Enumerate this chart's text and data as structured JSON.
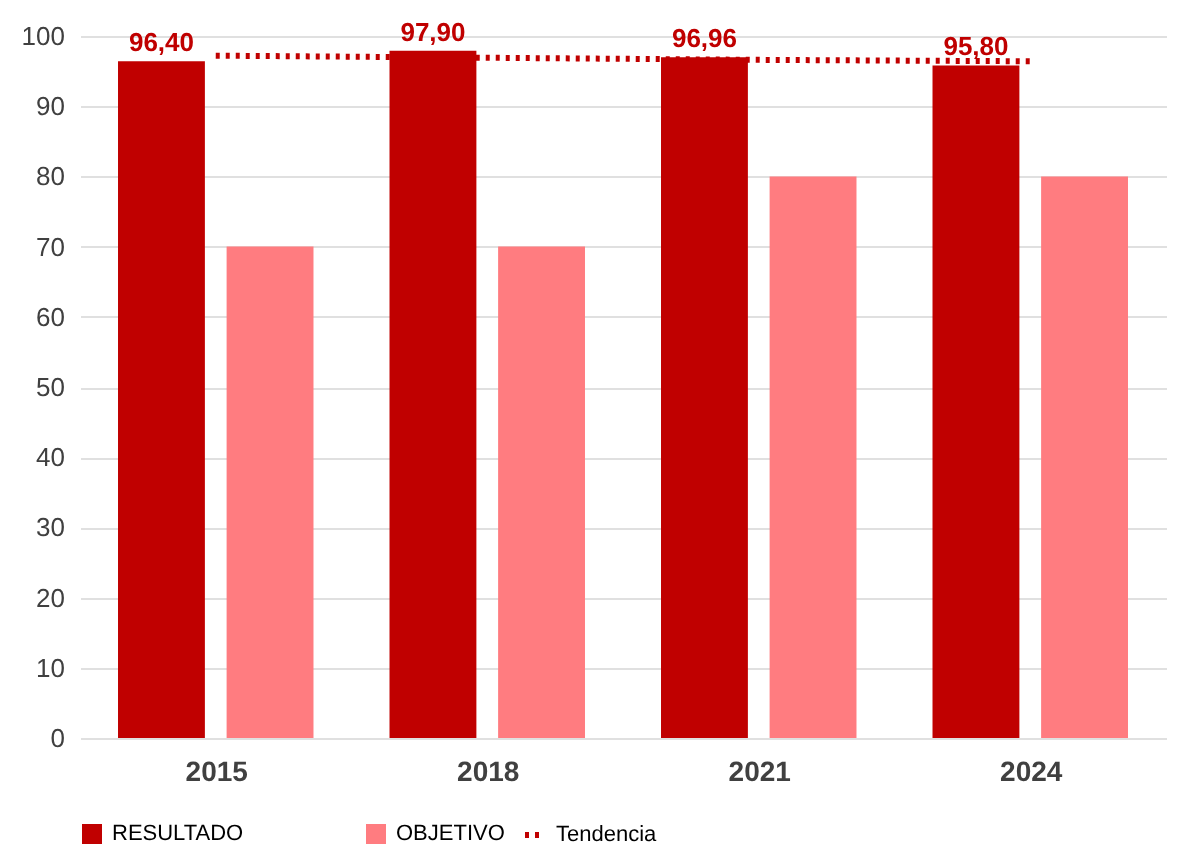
{
  "chart_data": {
    "type": "bar",
    "categories": [
      "2015",
      "2018",
      "2021",
      "2024"
    ],
    "series": [
      {
        "name": "RESULTADO",
        "color": "#c00000",
        "values": [
          96.4,
          97.9,
          96.96,
          95.8
        ],
        "value_labels": [
          "96,40",
          "97,90",
          "96,96",
          "95,80"
        ]
      },
      {
        "name": "OBJETIVO",
        "color": "#ff7c80",
        "values": [
          70,
          70,
          80,
          80
        ]
      },
      {
        "name": "Tendencia",
        "type": "line",
        "color": "#c00000",
        "line_style": "dotted",
        "values": [
          97.2,
          96.9,
          96.6,
          96.4
        ]
      }
    ],
    "ylim": [
      0,
      100
    ],
    "yticks": [
      0,
      10,
      20,
      30,
      40,
      50,
      60,
      70,
      80,
      90,
      100
    ],
    "grid": "y",
    "legend": "bottom"
  }
}
